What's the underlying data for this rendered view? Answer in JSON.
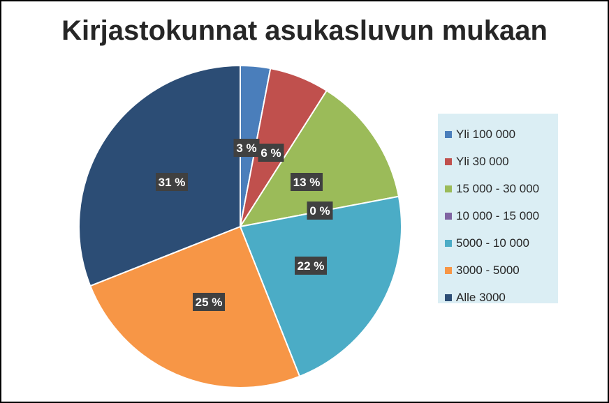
{
  "chart_data": {
    "type": "pie",
    "title": "Kirjastokunnat asukasluvun mukaan",
    "legend_position": "right",
    "slices": [
      {
        "name": "Yli 100 000",
        "value": 3,
        "label": "3 %",
        "color": "#4a7ebb"
      },
      {
        "name": "Yli 30 000",
        "value": 6,
        "label": "6 %",
        "color": "#c0504d"
      },
      {
        "name": "15 000 - 30 000",
        "value": 13,
        "label": "13 %",
        "color": "#9bbb59"
      },
      {
        "name": "10 000 - 15 000",
        "value": 0,
        "label": "0 %",
        "color": "#8064a2"
      },
      {
        "name": "5000 - 10 000",
        "value": 22,
        "label": "22 %",
        "color": "#4bacc6"
      },
      {
        "name": "3000 - 5000",
        "value": 25,
        "label": "25 %",
        "color": "#f79646"
      },
      {
        "name": "Alle 3000",
        "value": 31,
        "label": "31 %",
        "color": "#2c4d75"
      }
    ]
  }
}
